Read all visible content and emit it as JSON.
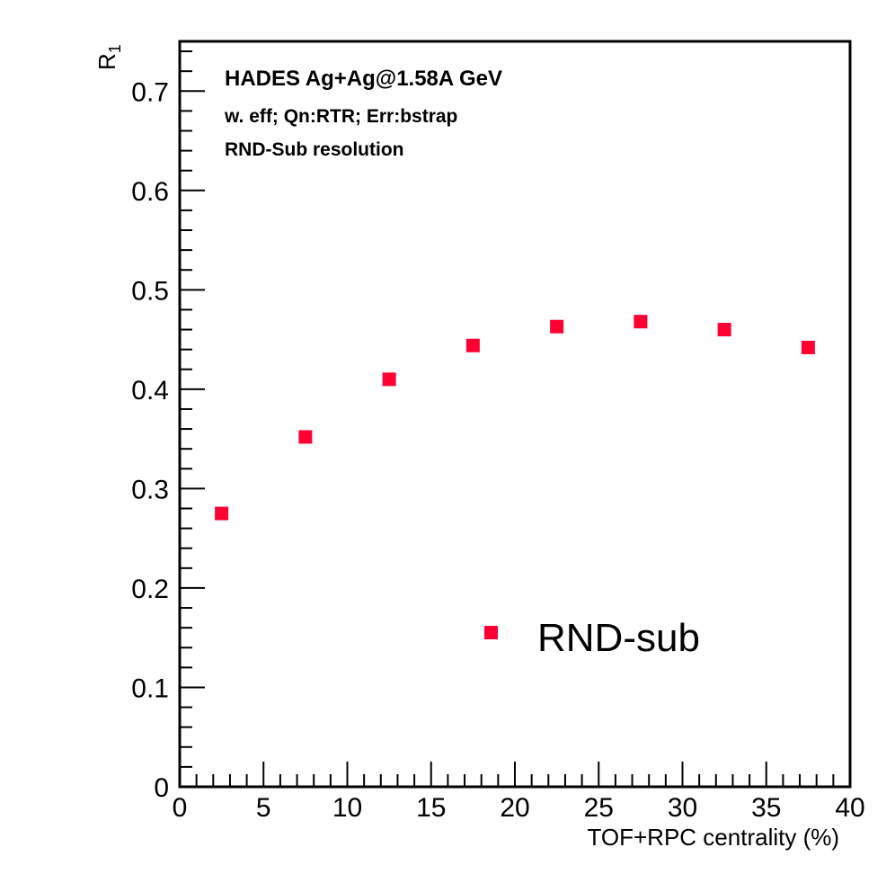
{
  "chart_data": {
    "type": "scatter",
    "xlabel": "TOF+RPC centrality (%)",
    "ylabel": "R",
    "ylabel_subscript": "1",
    "xlim": [
      0,
      40
    ],
    "ylim": [
      0,
      0.75
    ],
    "x_major_ticks": [
      0,
      5,
      10,
      15,
      20,
      25,
      30,
      35,
      40
    ],
    "x_tick_labels": [
      "0",
      "5",
      "10",
      "15",
      "20",
      "25",
      "30",
      "35",
      "40"
    ],
    "y_major_ticks": [
      0,
      0.1,
      0.2,
      0.3,
      0.4,
      0.5,
      0.6,
      0.7
    ],
    "y_tick_labels": [
      "0",
      "0.1",
      "0.2",
      "0.3",
      "0.4",
      "0.5",
      "0.6",
      "0.7"
    ],
    "grid": false,
    "annotations": [
      "HADES Ag+Ag@1.58A GeV",
      "w. eff; Qn:RTR; Err:bstrap",
      "RND-Sub resolution"
    ],
    "legend_position": "bottom-right",
    "series": [
      {
        "name": "RND-sub",
        "color": "#ff0033",
        "marker": "square",
        "x": [
          2.5,
          7.5,
          12.5,
          17.5,
          22.5,
          27.5,
          32.5,
          37.5
        ],
        "y": [
          0.275,
          0.352,
          0.41,
          0.444,
          0.463,
          0.468,
          0.46,
          0.442
        ]
      }
    ],
    "baseline_color": "#cc3300"
  }
}
